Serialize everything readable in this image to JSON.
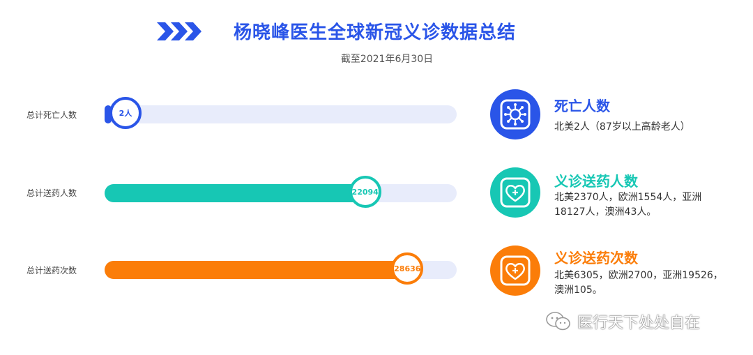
{
  "header": {
    "title": "杨晓峰医生全球新冠义诊数据总结",
    "subtitle": "截至2021年6月30日"
  },
  "colors": {
    "blue": "#2a55e8",
    "teal": "#17c7b4",
    "orange": "#fb7d09",
    "track": "#e8ecfb"
  },
  "chart_data": {
    "type": "bar",
    "categories": [
      "总计死亡人数",
      "总计送药人数",
      "总计送药次数"
    ],
    "values": [
      2,
      22094,
      28636
    ],
    "value_labels": [
      "2人",
      "22094",
      "28636"
    ]
  },
  "rows": [
    {
      "label": "总计死亡人数",
      "value_label": "2人",
      "color": "#2a55e8",
      "fill_fraction": 0.02,
      "icon": "virus-icon",
      "info_title": "死亡人数",
      "info_text": "北美2人（87岁以上高龄老人）"
    },
    {
      "label": "总计送药人数",
      "value_label": "22094",
      "color": "#17c7b4",
      "fill_fraction": 0.74,
      "icon": "heart-plus-icon",
      "info_title": "义诊送药人数",
      "info_text": "北美2370人，欧洲1554人，亚洲18127人，澳洲43人。"
    },
    {
      "label": "总计送药次数",
      "value_label": "28636",
      "color": "#fb7d09",
      "fill_fraction": 0.86,
      "icon": "heart-plus-icon",
      "info_title": "义诊送药次数",
      "info_text": "北美6305，欧洲2700，亚洲19526，澳洲105。"
    }
  ],
  "watermark": {
    "text": "医行天下处处自在",
    "icon": "wechat-icon"
  }
}
